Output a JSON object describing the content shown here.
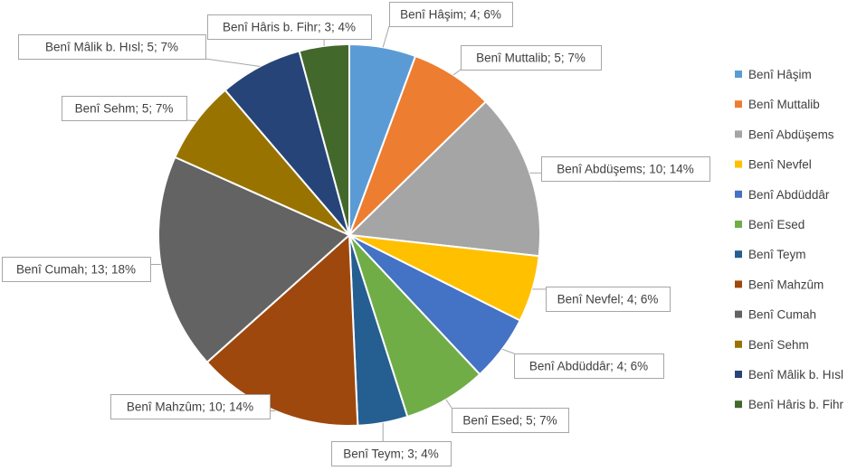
{
  "chart_data": {
    "type": "pie",
    "title": "",
    "legend_position": "right",
    "slices": [
      {
        "name": "Benî Hâşim",
        "value": 4,
        "percent": "6%",
        "label": "Benî Hâşim; 4; 6%",
        "color": "#5b9bd5"
      },
      {
        "name": "Benî Muttalib",
        "value": 5,
        "percent": "7%",
        "label": "Benî Muttalib; 5; 7%",
        "color": "#ed7d31"
      },
      {
        "name": "Benî Abdüşems",
        "value": 10,
        "percent": "14%",
        "label": "Benî Abdüşems; 10; 14%",
        "color": "#a5a5a5"
      },
      {
        "name": "Benî Nevfel",
        "value": 4,
        "percent": "6%",
        "label": "Benî Nevfel; 4; 6%",
        "color": "#ffc000"
      },
      {
        "name": "Benî Abdüddâr",
        "value": 4,
        "percent": "6%",
        "label": "Benî Abdüddâr; 4; 6%",
        "color": "#4472c4"
      },
      {
        "name": "Benî Esed",
        "value": 5,
        "percent": "7%",
        "label": "Benî Esed; 5; 7%",
        "color": "#70ad47"
      },
      {
        "name": "Benî Teym",
        "value": 3,
        "percent": "4%",
        "label": "Benî Teym; 3; 4%",
        "color": "#255e91"
      },
      {
        "name": "Benî Mahzûm",
        "value": 10,
        "percent": "14%",
        "label": "Benî Mahzûm; 10; 14%",
        "color": "#9e480e"
      },
      {
        "name": "Benî Cumah",
        "value": 13,
        "percent": "18%",
        "label": "Benî Cumah; 13; 18%",
        "color": "#636363"
      },
      {
        "name": "Benî Sehm",
        "value": 5,
        "percent": "7%",
        "label": "Benî Sehm; 5; 7%",
        "color": "#997300"
      },
      {
        "name": "Benî Mâlik b. Hısl",
        "value": 5,
        "percent": "7%",
        "label": "Benî Mâlik b. Hısl; 5; 7%",
        "color": "#264478"
      },
      {
        "name": "Benî Hâris b. Fihr",
        "value": 3,
        "percent": "4%",
        "label": "Benî Hâris b. Fihr; 3; 4%",
        "color": "#43682b"
      }
    ]
  }
}
